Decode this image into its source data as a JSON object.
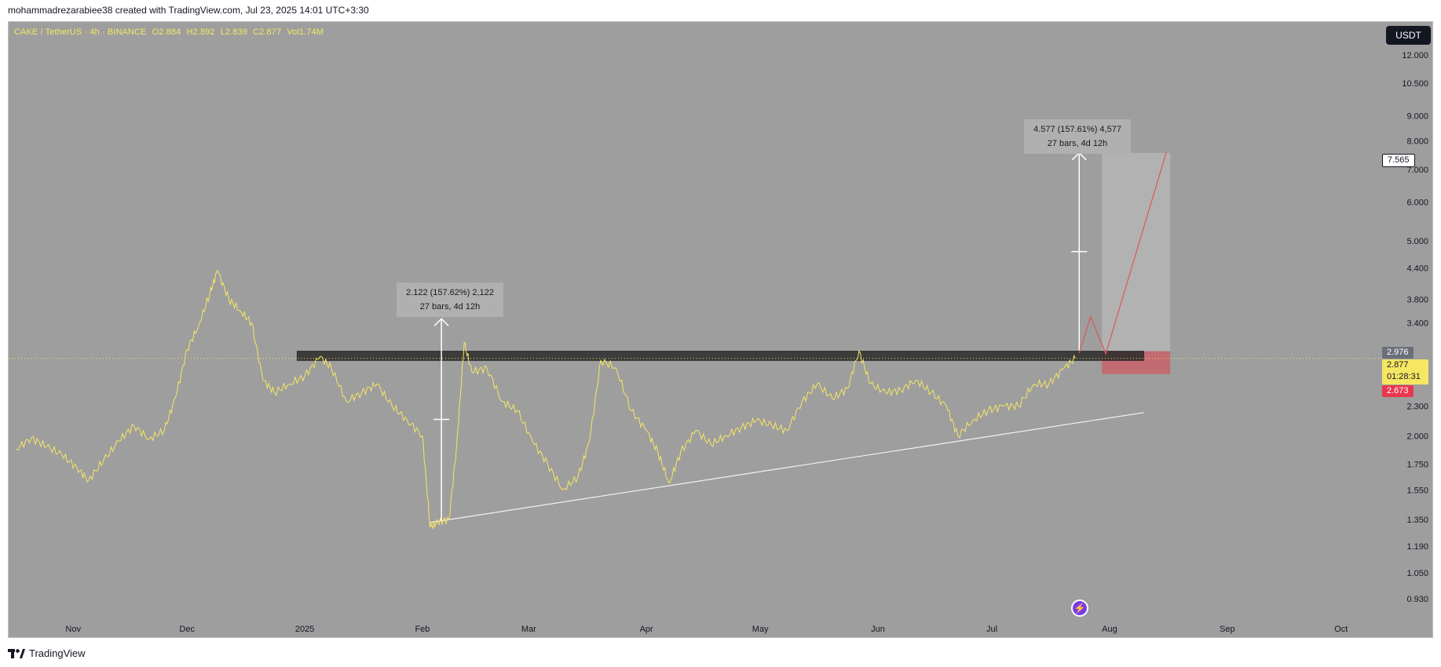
{
  "header": {
    "attribution": "mohammadrezarabiee38 created with TradingView.com, Jul 23, 2025 14:01 UTC+3:30"
  },
  "legend": {
    "pair": "CAKE / TetherUS · 4h · BINANCE",
    "open": "O2.884",
    "high": "H2.892",
    "low": "L2.839",
    "close": "C2.877",
    "volume": "Vol1.74M"
  },
  "currency": "USDT",
  "footer": {
    "brand": "TradingView"
  },
  "measure_labels": [
    {
      "line1": "2.122 (157.62%) 2,122",
      "line2": "27 bars, 4d 12h"
    },
    {
      "line1": "4.577 (157.61%) 4,577",
      "line2": "27 bars, 4d 12h"
    }
  ],
  "price_tags": {
    "target": "7.565",
    "resistance": "2.976",
    "last": "2.877",
    "countdown": "01:28:31",
    "stop": "2.673"
  },
  "colors": {
    "background": "#9e9e9e",
    "price_line": "#f5e663",
    "zone": "#2b2b2b",
    "target_box": "#b4b4b4",
    "stop_box": "#c8626a",
    "projection": "#e05555",
    "trendline": "#f2f2f2"
  },
  "chart_data": {
    "type": "line",
    "title": "CAKE / TetherUS · 4h · BINANCE",
    "scale": "log",
    "ylim": [
      0.86,
      14.0
    ],
    "y_ticks": [
      "12.000",
      "10.500",
      "9.000",
      "8.000",
      "7.000",
      "6.000",
      "5.000",
      "4.400",
      "3.800",
      "3.400",
      "2.300",
      "2.000",
      "1.750",
      "1.550",
      "1.350",
      "1.190",
      "1.050",
      "0.930"
    ],
    "x_ticks": [
      "Nov",
      "Dec",
      "2025",
      "Feb",
      "Mar",
      "Apr",
      "May",
      "Jun",
      "Jul",
      "Aug",
      "Sep",
      "Oct"
    ],
    "xlim": [
      "2024-10-15",
      "2025-10-12"
    ],
    "series": [
      {
        "values_approx": [
          [
            "2024-10-17",
            1.88
          ],
          [
            "2024-10-21",
            1.98
          ],
          [
            "2024-10-25",
            1.9
          ],
          [
            "2024-10-29",
            1.83
          ],
          [
            "2024-11-02",
            1.72
          ],
          [
            "2024-11-05",
            1.62
          ],
          [
            "2024-11-09",
            1.78
          ],
          [
            "2024-11-13",
            1.95
          ],
          [
            "2024-11-17",
            2.1
          ],
          [
            "2024-11-21",
            1.97
          ],
          [
            "2024-11-25",
            2.05
          ],
          [
            "2024-11-28",
            2.4
          ],
          [
            "2024-12-01",
            3.0
          ],
          [
            "2024-12-04",
            3.35
          ],
          [
            "2024-12-07",
            3.9
          ],
          [
            "2024-12-09",
            4.35
          ],
          [
            "2024-12-12",
            3.8
          ],
          [
            "2024-12-15",
            3.6
          ],
          [
            "2024-12-18",
            3.4
          ],
          [
            "2024-12-21",
            2.6
          ],
          [
            "2024-12-24",
            2.45
          ],
          [
            "2024-12-28",
            2.55
          ],
          [
            "2025-01-01",
            2.65
          ],
          [
            "2025-01-05",
            2.9
          ],
          [
            "2025-01-08",
            2.75
          ],
          [
            "2025-01-12",
            2.35
          ],
          [
            "2025-01-16",
            2.45
          ],
          [
            "2025-01-20",
            2.55
          ],
          [
            "2025-01-24",
            2.3
          ],
          [
            "2025-01-28",
            2.15
          ],
          [
            "2025-02-01",
            2.0
          ],
          [
            "2025-02-03",
            1.3
          ],
          [
            "2025-02-05",
            1.33
          ],
          [
            "2025-02-08",
            1.35
          ],
          [
            "2025-02-10",
            1.9
          ],
          [
            "2025-02-12",
            3.1
          ],
          [
            "2025-02-14",
            2.7
          ],
          [
            "2025-02-18",
            2.75
          ],
          [
            "2025-02-22",
            2.35
          ],
          [
            "2025-02-26",
            2.25
          ],
          [
            "2025-03-02",
            1.95
          ],
          [
            "2025-03-06",
            1.75
          ],
          [
            "2025-03-10",
            1.55
          ],
          [
            "2025-03-14",
            1.65
          ],
          [
            "2025-03-17",
            1.95
          ],
          [
            "2025-03-20",
            2.85
          ],
          [
            "2025-03-24",
            2.75
          ],
          [
            "2025-03-28",
            2.25
          ],
          [
            "2025-04-01",
            2.05
          ],
          [
            "2025-04-04",
            1.85
          ],
          [
            "2025-04-07",
            1.6
          ],
          [
            "2025-04-10",
            1.85
          ],
          [
            "2025-04-14",
            2.05
          ],
          [
            "2025-04-18",
            1.92
          ],
          [
            "2025-04-22",
            2.0
          ],
          [
            "2025-04-26",
            2.08
          ],
          [
            "2025-04-30",
            2.15
          ],
          [
            "2025-05-04",
            2.1
          ],
          [
            "2025-05-08",
            2.05
          ],
          [
            "2025-05-12",
            2.35
          ],
          [
            "2025-05-16",
            2.55
          ],
          [
            "2025-05-20",
            2.38
          ],
          [
            "2025-05-24",
            2.5
          ],
          [
            "2025-05-27",
            2.98
          ],
          [
            "2025-05-30",
            2.55
          ],
          [
            "2025-06-03",
            2.45
          ],
          [
            "2025-06-07",
            2.48
          ],
          [
            "2025-06-11",
            2.6
          ],
          [
            "2025-06-15",
            2.45
          ],
          [
            "2025-06-19",
            2.3
          ],
          [
            "2025-06-22",
            2.0
          ],
          [
            "2025-06-26",
            2.15
          ],
          [
            "2025-06-30",
            2.25
          ],
          [
            "2025-07-04",
            2.3
          ],
          [
            "2025-07-08",
            2.3
          ],
          [
            "2025-07-12",
            2.55
          ],
          [
            "2025-07-16",
            2.55
          ],
          [
            "2025-07-20",
            2.75
          ],
          [
            "2025-07-23",
            2.877
          ]
        ]
      }
    ],
    "annotations": [
      {
        "type": "resistance_zone",
        "price_range": [
          2.85,
          2.976
        ],
        "from": "2024-12-30",
        "to": "2025-08-10"
      },
      {
        "type": "trendline",
        "from": [
          "2025-02-03",
          1.33
        ],
        "to": [
          "2025-08-10",
          2.23
        ]
      },
      {
        "type": "measure",
        "from": [
          "2025-02-06",
          1.345
        ],
        "to": [
          "2025-02-06",
          3.467
        ],
        "label": "2.122 (157.62%) 2,122 · 27 bars, 4d 12h"
      },
      {
        "type": "measure",
        "from": [
          "2025-07-24",
          2.988
        ],
        "to": [
          "2025-07-24",
          7.565
        ],
        "label": "4.577 (157.61%) 4,577 · 27 bars, 4d 12h"
      },
      {
        "type": "long_position",
        "entry": 2.976,
        "target": 7.565,
        "stop": 2.673,
        "from": "2025-07-30",
        "to": "2025-08-17"
      },
      {
        "type": "projection",
        "points": [
          [
            "2025-07-24",
            2.95
          ],
          [
            "2025-07-27",
            3.5
          ],
          [
            "2025-07-31",
            2.94
          ],
          [
            "2025-08-16",
            7.6
          ]
        ]
      }
    ]
  }
}
